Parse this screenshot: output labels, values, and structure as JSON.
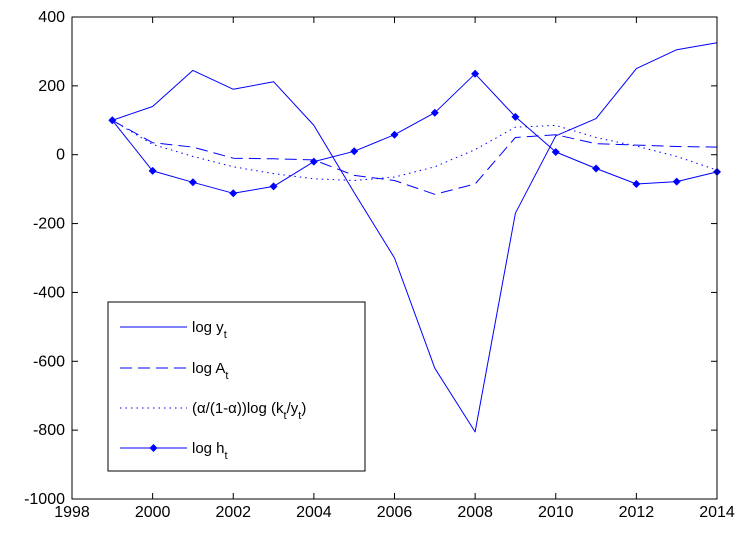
{
  "chart_data": {
    "type": "line",
    "title": "",
    "xlabel": "",
    "ylabel": "",
    "xlim": [
      1998,
      2014
    ],
    "ylim": [
      -1000,
      400
    ],
    "x_ticks": [
      "1998",
      "2000",
      "2002",
      "2004",
      "2006",
      "2008",
      "2010",
      "2012",
      "2014"
    ],
    "y_ticks": [
      "400",
      "200",
      "0",
      "-200",
      "-400",
      "-600",
      "-800",
      "-1000"
    ],
    "grid": false,
    "legend_position": "bottom-left",
    "x": [
      1999,
      2000,
      2001,
      2002,
      2003,
      2004,
      2005,
      2006,
      2007,
      2008,
      2009,
      2010,
      2011,
      2012,
      2013,
      2014
    ],
    "series": [
      {
        "legend": {
          "main": "log y",
          "sub": "t"
        },
        "style": "solid",
        "values": [
          100,
          140,
          245,
          190,
          212,
          85,
          -110,
          -300,
          -620,
          -805,
          -170,
          55,
          105,
          250,
          305,
          325
        ]
      },
      {
        "legend": {
          "main": "log A",
          "sub": "t"
        },
        "style": "dashed",
        "values": [
          100,
          35,
          22,
          -10,
          -12,
          -15,
          -60,
          -75,
          -115,
          -85,
          50,
          58,
          32,
          28,
          24,
          22
        ]
      },
      {
        "legend": {
          "pre": "(α/(1-α))log (k",
          "s1": "t",
          "mid": "/y",
          "s2": "t",
          "post": ")"
        },
        "style": "dotted",
        "values": [
          100,
          30,
          -5,
          -35,
          -55,
          -70,
          -75,
          -65,
          -35,
          15,
          80,
          85,
          50,
          25,
          -5,
          -45
        ]
      },
      {
        "legend": {
          "main": "log h",
          "sub": "t"
        },
        "style": "solid-marker",
        "values": [
          100,
          -47,
          -80,
          -112,
          -92,
          -20,
          10,
          58,
          122,
          235,
          110,
          8,
          -40,
          -85,
          -78,
          -50
        ]
      }
    ],
    "colors": {
      "line": "#0000ff",
      "axes": "#000000",
      "background": "#ffffff"
    }
  }
}
